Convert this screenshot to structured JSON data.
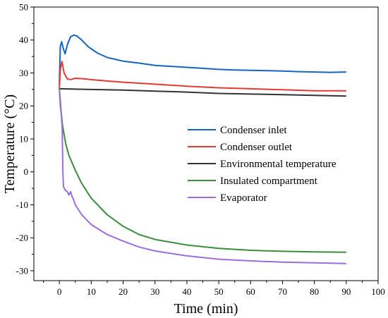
{
  "chart_data": {
    "type": "line",
    "title": "",
    "xlabel": "Time (min)",
    "ylabel": "Temperature (°C)",
    "xlim": [
      -8,
      100
    ],
    "ylim": [
      -33,
      50
    ],
    "xticks": [
      "0",
      "10",
      "20",
      "30",
      "40",
      "50",
      "60",
      "70",
      "80",
      "90",
      "100"
    ],
    "yticks": [
      "-30",
      "-20",
      "-10",
      "0",
      "10",
      "20",
      "30",
      "40",
      "50"
    ],
    "grid": false,
    "legend_position": "center-right",
    "series": [
      {
        "name": "Condenser inlet",
        "color": "#1565c0",
        "x": [
          0,
          0.3,
          0.7,
          1.2,
          1.8,
          2.5,
          3.5,
          4.5,
          5.5,
          7,
          9,
          12,
          15,
          20,
          25,
          30,
          35,
          40,
          45,
          50,
          55,
          60,
          65,
          70,
          75,
          80,
          85,
          90
        ],
        "y": [
          26.5,
          38.0,
          39.5,
          37.5,
          35.8,
          38.5,
          41.0,
          41.5,
          41.2,
          40.0,
          38.0,
          36.0,
          34.7,
          33.6,
          33.0,
          32.3,
          32.0,
          31.7,
          31.4,
          31.1,
          30.9,
          30.8,
          30.7,
          30.6,
          30.4,
          30.3,
          30.2,
          30.3
        ]
      },
      {
        "name": "Condenser outlet",
        "color": "#e53935",
        "x": [
          0,
          0.3,
          0.8,
          1.5,
          2.5,
          3.5,
          5,
          8,
          12,
          20,
          30,
          40,
          50,
          60,
          70,
          80,
          90
        ],
        "y": [
          25.0,
          31.0,
          33.5,
          30.0,
          28.2,
          28.0,
          28.4,
          28.2,
          27.8,
          27.2,
          26.6,
          26.0,
          25.5,
          25.2,
          24.9,
          24.6,
          24.6
        ]
      },
      {
        "name": "Environmental temperature",
        "color": "#333333",
        "x": [
          0,
          5,
          10,
          20,
          30,
          40,
          50,
          60,
          70,
          80,
          90
        ],
        "y": [
          25.2,
          25.1,
          25.0,
          24.8,
          24.5,
          24.2,
          23.8,
          23.6,
          23.4,
          23.2,
          23.0
        ]
      },
      {
        "name": "Insulated compartment",
        "color": "#388e3c",
        "x": [
          0,
          0.5,
          1,
          2,
          3,
          5,
          7,
          10,
          15,
          20,
          25,
          30,
          40,
          50,
          60,
          70,
          80,
          90
        ],
        "y": [
          25.5,
          19.0,
          14.0,
          8.5,
          5.0,
          0.5,
          -3.5,
          -8.0,
          -13.0,
          -16.5,
          -19.0,
          -20.5,
          -22.2,
          -23.2,
          -23.8,
          -24.1,
          -24.3,
          -24.4
        ]
      },
      {
        "name": "Evaporator",
        "color": "#9c6ede",
        "x": [
          0,
          0.3,
          0.6,
          0.9,
          1.1,
          1.3,
          1.8,
          2.5,
          3.0,
          3.5,
          4.0,
          4.5,
          5,
          7,
          10,
          15,
          20,
          25,
          30,
          40,
          50,
          60,
          70,
          80,
          90
        ],
        "y": [
          25.0,
          20.0,
          17.5,
          13.0,
          0.0,
          -4.5,
          -5.5,
          -6.0,
          -7.0,
          -6.0,
          -7.5,
          -8.5,
          -10.0,
          -13.0,
          -16.0,
          -19.0,
          -21.0,
          -22.8,
          -24.0,
          -25.5,
          -26.5,
          -27.0,
          -27.4,
          -27.6,
          -27.8
        ]
      }
    ]
  }
}
